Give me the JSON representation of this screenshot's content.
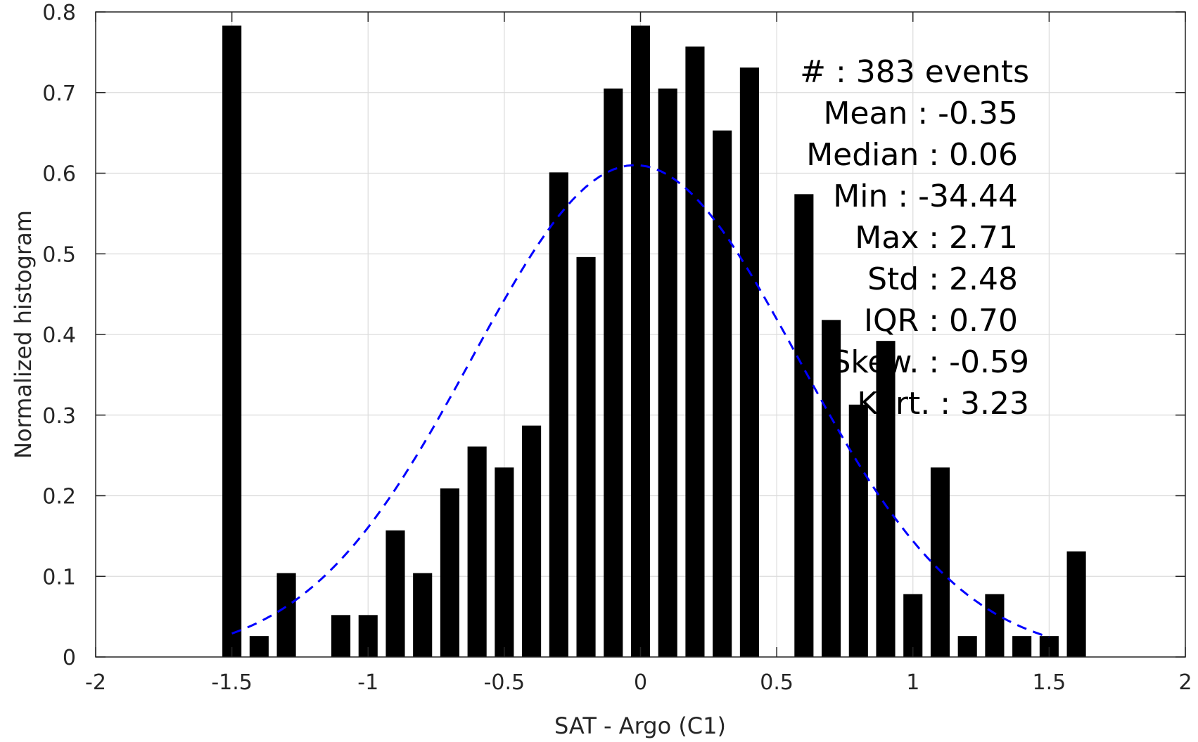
{
  "chart_data": {
    "type": "bar",
    "title": "",
    "xlabel": "SAT - Argo (C1)",
    "ylabel": "Normalized histogram",
    "xlim": [
      -2,
      2
    ],
    "ylim": [
      0,
      0.8
    ],
    "x_ticks": [
      "-2",
      "-1.5",
      "-1",
      "-0.5",
      "0",
      "0.5",
      "1",
      "1.5",
      "2"
    ],
    "y_ticks": [
      "0",
      "0.1",
      "0.2",
      "0.3",
      "0.4",
      "0.5",
      "0.6",
      "0.7",
      "0.8"
    ],
    "grid": true,
    "bar_width": 0.07,
    "bar_color": "#000000",
    "bins": [
      {
        "x": -1.5,
        "y": 0.783
      },
      {
        "x": -1.4,
        "y": 0.026
      },
      {
        "x": -1.3,
        "y": 0.104
      },
      {
        "x": -1.2,
        "y": 0.0
      },
      {
        "x": -1.1,
        "y": 0.052
      },
      {
        "x": -1.0,
        "y": 0.052
      },
      {
        "x": -0.9,
        "y": 0.157
      },
      {
        "x": -0.8,
        "y": 0.104
      },
      {
        "x": -0.7,
        "y": 0.209
      },
      {
        "x": -0.6,
        "y": 0.261
      },
      {
        "x": -0.5,
        "y": 0.235
      },
      {
        "x": -0.4,
        "y": 0.287
      },
      {
        "x": -0.3,
        "y": 0.601
      },
      {
        "x": -0.2,
        "y": 0.496
      },
      {
        "x": -0.1,
        "y": 0.705
      },
      {
        "x": 0.0,
        "y": 0.783
      },
      {
        "x": 0.1,
        "y": 0.705
      },
      {
        "x": 0.2,
        "y": 0.757
      },
      {
        "x": 0.3,
        "y": 0.653
      },
      {
        "x": 0.4,
        "y": 0.731
      },
      {
        "x": 0.5,
        "y": 0.0
      },
      {
        "x": 0.6,
        "y": 0.574
      },
      {
        "x": 0.7,
        "y": 0.418
      },
      {
        "x": 0.8,
        "y": 0.313
      },
      {
        "x": 0.9,
        "y": 0.392
      },
      {
        "x": 1.0,
        "y": 0.078
      },
      {
        "x": 1.1,
        "y": 0.235
      },
      {
        "x": 1.2,
        "y": 0.026
      },
      {
        "x": 1.3,
        "y": 0.078
      },
      {
        "x": 1.4,
        "y": 0.026
      },
      {
        "x": 1.5,
        "y": 0.026
      },
      {
        "x": 1.6,
        "y": 0.131
      }
    ],
    "fit_curve": {
      "style": "dashed",
      "color": "#0000ff",
      "peak_x": -0.02,
      "peak_y": 0.61,
      "sigma": 0.6,
      "x_range": [
        -1.5,
        1.5
      ]
    },
    "annotations": [
      "#  : 383 events",
      "Mean : -0.35",
      "Median : 0.06",
      "Min : -34.44",
      "Max : 2.71",
      "Std : 2.48",
      "IQR : 0.70",
      "Skew. : -0.59",
      "Kurt. : 3.23"
    ]
  }
}
